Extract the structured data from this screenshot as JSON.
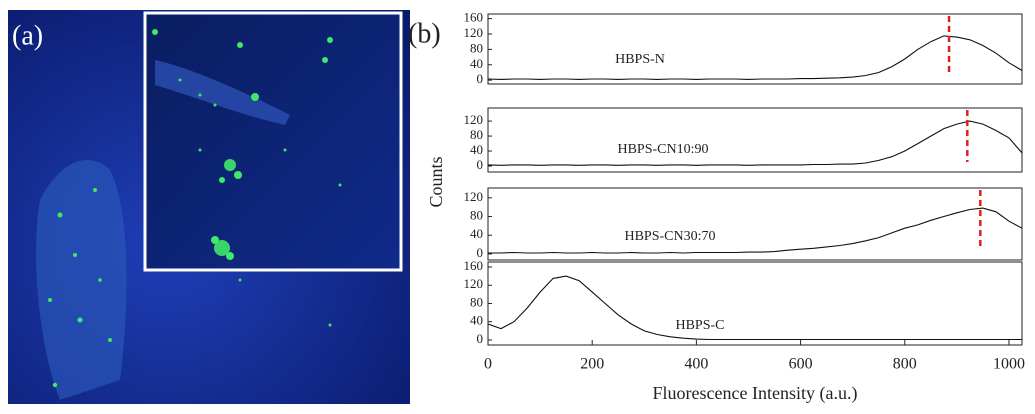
{
  "panel_a": {
    "label": "(a)"
  },
  "panel_b": {
    "label": "(b)",
    "y_label": "Counts",
    "x_label": "Fluorescence Intensity (a.u.)"
  },
  "chart_data": [
    {
      "type": "line",
      "x": [
        0,
        25,
        50,
        75,
        100,
        125,
        150,
        175,
        200,
        225,
        250,
        275,
        300,
        325,
        350,
        375,
        400,
        425,
        450,
        475,
        500,
        525,
        550,
        575,
        600,
        625,
        650,
        675,
        700,
        725,
        750,
        775,
        800,
        825,
        850,
        875,
        900,
        925,
        950,
        975,
        1000,
        1025
      ],
      "series": [
        {
          "name": "HBPS-N",
          "color": "#111111",
          "values": [
            3,
            2,
            3,
            3,
            2,
            3,
            3,
            2,
            3,
            3,
            2,
            3,
            3,
            2,
            3,
            3,
            2,
            3,
            3,
            3,
            2,
            3,
            3,
            3,
            4,
            4,
            5,
            6,
            8,
            12,
            20,
            35,
            55,
            80,
            100,
            115,
            112,
            105,
            90,
            70,
            45,
            25
          ]
        }
      ],
      "xlim": [
        0,
        1025
      ],
      "ylim": [
        -10,
        172
      ],
      "yticks": [
        0,
        40,
        80,
        120,
        160
      ],
      "marker_x": 885,
      "marker_color": "#e02020"
    },
    {
      "type": "line",
      "x": [
        0,
        25,
        50,
        75,
        100,
        125,
        150,
        175,
        200,
        225,
        250,
        275,
        300,
        325,
        350,
        375,
        400,
        425,
        450,
        475,
        500,
        525,
        550,
        575,
        600,
        625,
        650,
        675,
        700,
        725,
        750,
        775,
        800,
        825,
        850,
        875,
        900,
        925,
        950,
        975,
        1000,
        1025
      ],
      "series": [
        {
          "name": "HBPS-CN10:90",
          "color": "#111111",
          "values": [
            3,
            2,
            3,
            3,
            2,
            3,
            3,
            2,
            3,
            3,
            2,
            3,
            3,
            2,
            3,
            3,
            2,
            3,
            3,
            3,
            2,
            3,
            3,
            3,
            3,
            4,
            4,
            5,
            5,
            8,
            15,
            25,
            40,
            60,
            80,
            100,
            112,
            120,
            112,
            95,
            75,
            35
          ]
        }
      ],
      "xlim": [
        0,
        1025
      ],
      "ylim": [
        -16,
        155
      ],
      "yticks": [
        0,
        40,
        80,
        120
      ],
      "marker_x": 920,
      "marker_color": "#e02020"
    },
    {
      "type": "line",
      "x": [
        0,
        25,
        50,
        75,
        100,
        125,
        150,
        175,
        200,
        225,
        250,
        275,
        300,
        325,
        350,
        375,
        400,
        425,
        450,
        475,
        500,
        525,
        550,
        575,
        600,
        625,
        650,
        675,
        700,
        725,
        750,
        775,
        800,
        825,
        850,
        875,
        900,
        925,
        950,
        975,
        1000,
        1025
      ],
      "series": [
        {
          "name": "HBPS-CN30:70",
          "color": "#111111",
          "values": [
            2,
            2,
            3,
            2,
            2,
            3,
            2,
            2,
            3,
            2,
            2,
            3,
            2,
            2,
            3,
            2,
            3,
            3,
            3,
            3,
            4,
            4,
            5,
            8,
            10,
            12,
            15,
            18,
            22,
            28,
            35,
            45,
            55,
            62,
            72,
            80,
            88,
            95,
            98,
            90,
            70,
            55
          ]
        }
      ],
      "xlim": [
        0,
        1025
      ],
      "ylim": [
        -13,
        141
      ],
      "yticks": [
        0,
        40,
        80,
        120
      ],
      "marker_x": 945,
      "marker_color": "#e02020"
    },
    {
      "type": "line",
      "x": [
        0,
        25,
        50,
        75,
        100,
        125,
        150,
        175,
        200,
        225,
        250,
        275,
        300,
        325,
        350,
        375,
        400,
        425,
        450,
        475,
        500,
        525,
        550,
        575,
        600,
        625,
        650,
        675,
        700,
        725,
        750,
        775,
        800,
        825,
        850,
        875,
        900,
        925,
        950,
        975,
        1000,
        1025
      ],
      "series": [
        {
          "name": "HBPS-C",
          "color": "#111111",
          "values": [
            35,
            25,
            40,
            70,
            105,
            135,
            140,
            130,
            105,
            80,
            55,
            35,
            20,
            12,
            7,
            4,
            2,
            1,
            1,
            1,
            1,
            1,
            1,
            1,
            1,
            1,
            1,
            1,
            1,
            1,
            1,
            1,
            1,
            1,
            1,
            1,
            1,
            1,
            1,
            1,
            1,
            1
          ]
        }
      ],
      "xlim": [
        0,
        1025
      ],
      "ylim": [
        -11,
        171
      ],
      "yticks": [
        0,
        40,
        80,
        120,
        160
      ],
      "xticks": [
        0,
        200,
        400,
        600,
        800,
        1000
      ]
    }
  ]
}
